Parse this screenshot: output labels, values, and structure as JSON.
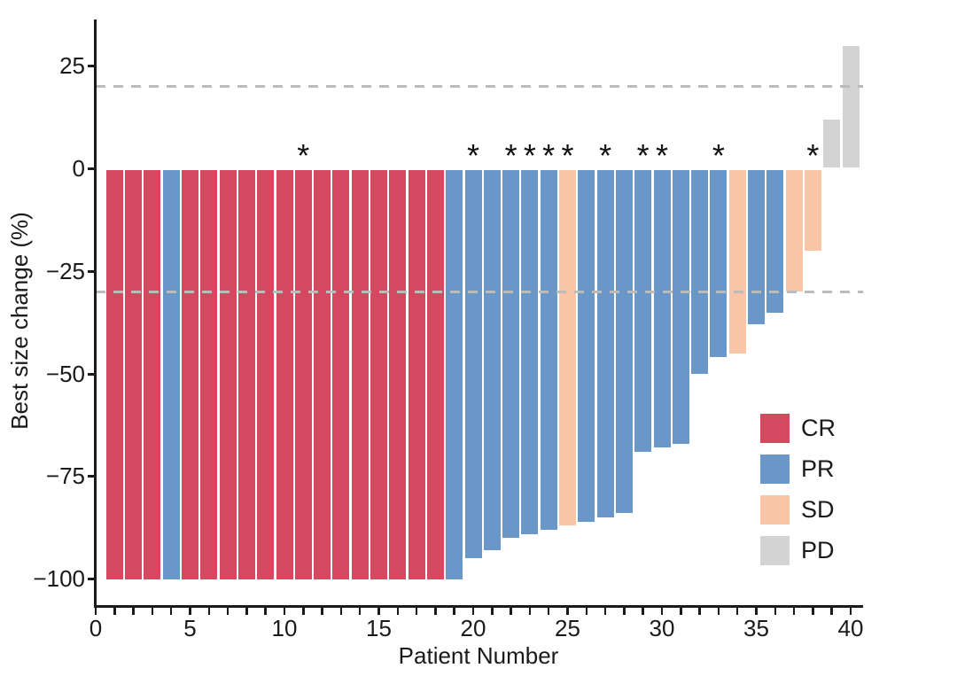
{
  "figure_name": "waterfall-plot-best-size-change",
  "axes": {
    "x_title": "Patient Number",
    "y_title": "Best size change (%)",
    "y_ticks": [
      {
        "value": 25,
        "label": "25"
      },
      {
        "value": 0,
        "label": "0"
      },
      {
        "value": -25,
        "label": "−25"
      },
      {
        "value": -50,
        "label": "−50"
      },
      {
        "value": -75,
        "label": "−75"
      },
      {
        "value": -100,
        "label": "−100"
      }
    ],
    "x_ticks": {
      "minor_values": [
        0,
        1,
        2,
        3,
        4,
        5,
        6,
        7,
        8,
        9,
        10,
        11,
        12,
        13,
        14,
        15,
        16,
        17,
        18,
        19,
        20,
        21,
        22,
        23,
        24,
        25,
        26,
        27,
        28,
        29,
        30,
        31,
        32,
        33,
        34,
        35,
        36,
        37,
        38,
        39,
        40
      ],
      "labeled": [
        {
          "value": 0,
          "label": "0"
        },
        {
          "value": 5,
          "label": "5"
        },
        {
          "value": 10,
          "label": "10"
        },
        {
          "value": 15,
          "label": "15"
        },
        {
          "value": 20,
          "label": "20"
        },
        {
          "value": 25,
          "label": "25"
        },
        {
          "value": 30,
          "label": "30"
        },
        {
          "value": 35,
          "label": "35"
        },
        {
          "value": 40,
          "label": "40"
        }
      ]
    }
  },
  "chart_data": {
    "type": "bar",
    "subtype": "waterfall",
    "title": "",
    "xlabel": "Patient Number",
    "ylabel": "Best size change (%)",
    "xlim": [
      0,
      40.8
    ],
    "ylim": [
      -107,
      36
    ],
    "grid": false,
    "annotation_symbol": "*",
    "reference_lines": [
      {
        "y": 20,
        "style": "dashed",
        "color": "#bbbbbb"
      },
      {
        "y": -30,
        "style": "dashed",
        "color": "#bbbbbb"
      }
    ],
    "colors": {
      "CR": "#D6485F",
      "PR": "#6B96C8",
      "SD": "#F8C6A7",
      "PD": "#D3D3D3"
    },
    "legend": {
      "position": "inside-right",
      "items": [
        {
          "label": "CR",
          "color": "#D6485F"
        },
        {
          "label": "PR",
          "color": "#6B96C8"
        },
        {
          "label": "SD",
          "color": "#F8C6A7"
        },
        {
          "label": "PD",
          "color": "#D3D3D3"
        }
      ]
    },
    "patients": [
      {
        "patient": 1,
        "value": -100,
        "response": "CR",
        "asterisk": false
      },
      {
        "patient": 2,
        "value": -100,
        "response": "CR",
        "asterisk": false
      },
      {
        "patient": 3,
        "value": -100,
        "response": "CR",
        "asterisk": false
      },
      {
        "patient": 4,
        "value": -100,
        "response": "PR",
        "asterisk": false
      },
      {
        "patient": 5,
        "value": -100,
        "response": "CR",
        "asterisk": false
      },
      {
        "patient": 6,
        "value": -100,
        "response": "CR",
        "asterisk": false
      },
      {
        "patient": 7,
        "value": -100,
        "response": "CR",
        "asterisk": false
      },
      {
        "patient": 8,
        "value": -100,
        "response": "CR",
        "asterisk": false
      },
      {
        "patient": 9,
        "value": -100,
        "response": "CR",
        "asterisk": false
      },
      {
        "patient": 10,
        "value": -100,
        "response": "CR",
        "asterisk": false
      },
      {
        "patient": 11,
        "value": -100,
        "response": "CR",
        "asterisk": true
      },
      {
        "patient": 12,
        "value": -100,
        "response": "CR",
        "asterisk": false
      },
      {
        "patient": 13,
        "value": -100,
        "response": "CR",
        "asterisk": false
      },
      {
        "patient": 14,
        "value": -100,
        "response": "CR",
        "asterisk": false
      },
      {
        "patient": 15,
        "value": -100,
        "response": "CR",
        "asterisk": false
      },
      {
        "patient": 16,
        "value": -100,
        "response": "CR",
        "asterisk": false
      },
      {
        "patient": 17,
        "value": -100,
        "response": "CR",
        "asterisk": false
      },
      {
        "patient": 18,
        "value": -100,
        "response": "CR",
        "asterisk": false
      },
      {
        "patient": 19,
        "value": -100,
        "response": "PR",
        "asterisk": false
      },
      {
        "patient": 20,
        "value": -95,
        "response": "PR",
        "asterisk": true
      },
      {
        "patient": 21,
        "value": -93,
        "response": "PR",
        "asterisk": false
      },
      {
        "patient": 22,
        "value": -90,
        "response": "PR",
        "asterisk": true
      },
      {
        "patient": 23,
        "value": -89,
        "response": "PR",
        "asterisk": true
      },
      {
        "patient": 24,
        "value": -88,
        "response": "PR",
        "asterisk": true
      },
      {
        "patient": 25,
        "value": -87,
        "response": "SD",
        "asterisk": true
      },
      {
        "patient": 26,
        "value": -86,
        "response": "PR",
        "asterisk": false
      },
      {
        "patient": 27,
        "value": -85,
        "response": "PR",
        "asterisk": true
      },
      {
        "patient": 28,
        "value": -84,
        "response": "PR",
        "asterisk": false
      },
      {
        "patient": 29,
        "value": -69,
        "response": "PR",
        "asterisk": true
      },
      {
        "patient": 30,
        "value": -68,
        "response": "PR",
        "asterisk": true
      },
      {
        "patient": 31,
        "value": -67,
        "response": "PR",
        "asterisk": false
      },
      {
        "patient": 32,
        "value": -50,
        "response": "PR",
        "asterisk": false
      },
      {
        "patient": 33,
        "value": -46,
        "response": "PR",
        "asterisk": true
      },
      {
        "patient": 34,
        "value": -45,
        "response": "SD",
        "asterisk": false
      },
      {
        "patient": 35,
        "value": -38,
        "response": "PR",
        "asterisk": false
      },
      {
        "patient": 36,
        "value": -35,
        "response": "PR",
        "asterisk": false
      },
      {
        "patient": 37,
        "value": -30,
        "response": "SD",
        "asterisk": false
      },
      {
        "patient": 38,
        "value": -20,
        "response": "SD",
        "asterisk": true
      },
      {
        "patient": 39,
        "value": 12,
        "response": "PD",
        "asterisk": false
      },
      {
        "patient": 40,
        "value": 30,
        "response": "PD",
        "asterisk": false
      }
    ]
  }
}
